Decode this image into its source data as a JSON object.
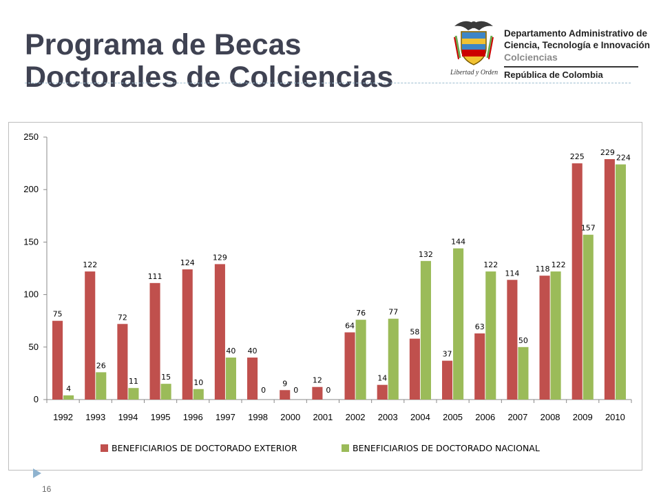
{
  "slide": {
    "title_line1": "Programa de Becas",
    "title_line2": "Doctorales de Colciencias",
    "page_number": "16"
  },
  "logo": {
    "org_line1": "Departamento Administrativo de",
    "org_line2": "Ciencia, Tecnología e Innovación",
    "brand": "Colciencias",
    "country": "República de Colombia",
    "motto": "Libertad y Orden"
  },
  "colors": {
    "series_exterior": "#c0504d",
    "series_nacional": "#9bbb59",
    "title": "#3f4252",
    "accent": "#8fb3cf"
  },
  "chart_data": {
    "type": "bar",
    "title": "",
    "xlabel": "",
    "ylabel": "",
    "ylim": [
      0,
      250
    ],
    "yticks": [
      0,
      50,
      100,
      150,
      200,
      250
    ],
    "grid": false,
    "legend_position": "bottom",
    "categories": [
      "1992",
      "1993",
      "1994",
      "1995",
      "1996",
      "1997",
      "1998",
      "2000",
      "2001",
      "2002",
      "2003",
      "2004",
      "2005",
      "2006",
      "2007",
      "2008",
      "2009",
      "2010"
    ],
    "series": [
      {
        "name": "BENEFICIARIOS DE DOCTORADO EXTERIOR",
        "color": "#c0504d",
        "values": [
          75,
          122,
          72,
          111,
          124,
          129,
          40,
          9,
          12,
          64,
          14,
          58,
          37,
          63,
          114,
          118,
          225,
          229
        ]
      },
      {
        "name": "BENEFICIARIOS DE DOCTORADO NACIONAL",
        "color": "#9bbb59",
        "values": [
          4,
          26,
          11,
          15,
          10,
          40,
          0,
          0,
          0,
          76,
          77,
          132,
          144,
          122,
          50,
          122,
          157,
          224
        ]
      }
    ]
  }
}
